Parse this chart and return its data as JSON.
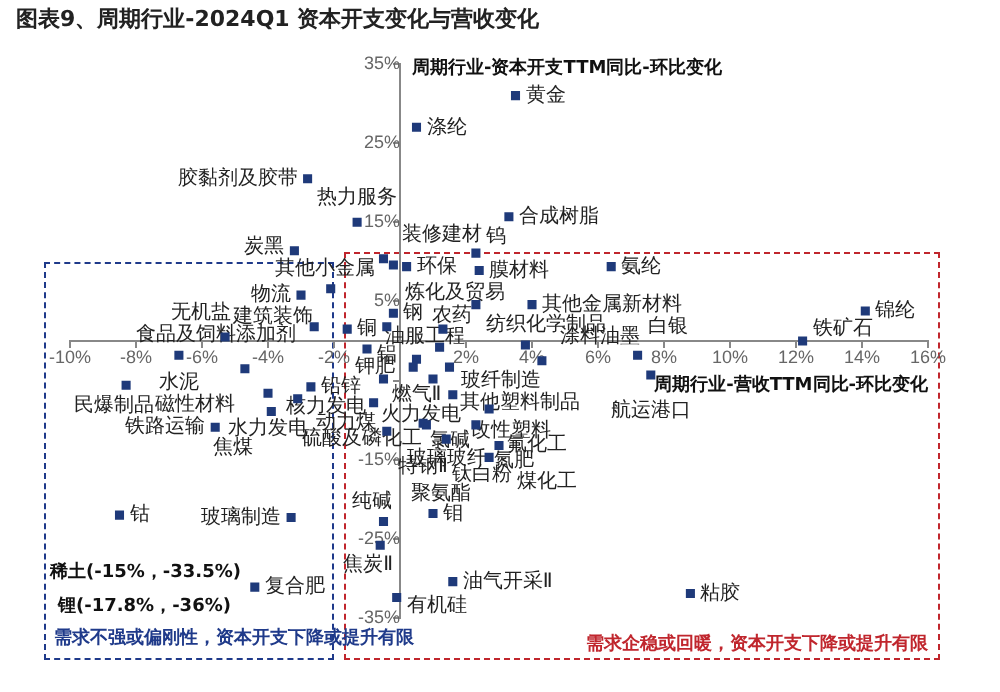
{
  "chart_data": {
    "type": "scatter",
    "title": "图表9、周期行业-2024Q1 资本开支变化与营收变化",
    "xlabel": "周期行业-营收TTM同比-环比变化",
    "ylabel": "周期行业-资本开支TTM同比-环比变化",
    "xlim": [
      -10,
      16
    ],
    "xticks": [
      {
        "value": -10,
        "label": "-10%"
      },
      {
        "value": -8,
        "label": "-8%"
      },
      {
        "value": -6,
        "label": "-6%"
      },
      {
        "value": -4,
        "label": "-4%"
      },
      {
        "value": -2,
        "label": "-2%"
      },
      {
        "value": 0,
        "label": null
      },
      {
        "value": 2,
        "label": "2%"
      },
      {
        "value": 4,
        "label": "4%"
      },
      {
        "value": 6,
        "label": "6%"
      },
      {
        "value": 8,
        "label": "8%"
      },
      {
        "value": 10,
        "label": "10%"
      },
      {
        "value": 12,
        "label": "12%"
      },
      {
        "value": 14,
        "label": "14%"
      },
      {
        "value": 16,
        "label": "16%"
      }
    ],
    "ylim": [
      -35,
      35
    ],
    "yticks": [
      {
        "value": -35,
        "label": "-35%"
      },
      {
        "value": -25,
        "label": "-25%"
      },
      {
        "value": -15,
        "label": "-15%"
      },
      {
        "value": -5,
        "label": null
      },
      {
        "value": 5,
        "label": "5%"
      },
      {
        "value": 15,
        "label": "15%"
      },
      {
        "value": 25,
        "label": "25%"
      },
      {
        "value": 35,
        "label": "35%"
      }
    ],
    "marker": "square",
    "legend": false,
    "grid": false,
    "series": [
      {
        "color": "#1f3a7a",
        "x": [
          0.5,
          3.5,
          -2.8,
          -1.3,
          3.3,
          -3.2,
          -0.5,
          -0.2,
          0.2,
          2.3,
          2.4,
          6.4,
          -3,
          -2.1,
          -2.6,
          -5.3,
          -1.6,
          -0.2,
          -0.4,
          2.3,
          1.3,
          4,
          3.8,
          4.3,
          7.2,
          7.6,
          12.2,
          14.1,
          -6.7,
          -4.7,
          -8.3,
          -4,
          -2.7,
          -3.1,
          -3.9,
          -5.6,
          -1,
          0.5,
          1.2,
          0.4,
          1.5,
          -0.5,
          1,
          1.6,
          -0.8,
          0.7,
          2.7,
          0.8,
          2.3,
          -0.4,
          1.4,
          3,
          2.7,
          -8.5,
          -3.3,
          -0.5,
          1,
          -0.6,
          -4.4,
          1.6,
          -0.1,
          8.8
        ],
        "values": [
          27,
          31,
          20.5,
          15,
          15.7,
          11.4,
          10.4,
          9.6,
          9.4,
          11.1,
          8.9,
          9.4,
          5.8,
          6.6,
          1.8,
          0.5,
          1.5,
          3.5,
          1.8,
          4.6,
          1.5,
          4.6,
          -0.5,
          -2.5,
          -1.8,
          -4.3,
          0,
          3.8,
          -1.8,
          -3.5,
          -5.6,
          -6.6,
          -5.8,
          -7.3,
          -8.9,
          -10.9,
          -1,
          -2.3,
          -0.8,
          -3.3,
          -3.3,
          -4.8,
          -4.8,
          -6.8,
          -7.8,
          -10.4,
          -8.6,
          -10.6,
          -10.6,
          -11.4,
          -12.4,
          -13.2,
          -14.7,
          -22,
          -22.3,
          -22.8,
          -21.8,
          -25.8,
          -31.1,
          -30.4,
          -32.4,
          -31.9
        ]
      }
    ],
    "annotations": [
      {
        "text": "涤纶",
        "x": 0.5,
        "y": 27
      },
      {
        "text": "黄金",
        "x": 3.5,
        "y": 31
      },
      {
        "text": "胶黏剂及胶带",
        "x": -2.8,
        "y": 20.5
      },
      {
        "text": "热力服务",
        "x": -1.3,
        "y": 15
      },
      {
        "text": "合成树脂",
        "x": 3.3,
        "y": 15.7
      },
      {
        "text": "炭黑",
        "x": -3.2,
        "y": 11.4
      },
      {
        "text": "装修建材",
        "x": -0.5,
        "y": 10.4
      },
      {
        "text": "其他小金属",
        "x": -0.2,
        "y": 9.6
      },
      {
        "text": "环保",
        "x": 0.2,
        "y": 9.4
      },
      {
        "text": "钨",
        "x": 2.3,
        "y": 11.1
      },
      {
        "text": "膜材料",
        "x": 2.4,
        "y": 8.9
      },
      {
        "text": "氨纶",
        "x": 6.4,
        "y": 9.4
      },
      {
        "text": "物流",
        "x": -3,
        "y": 5.8
      },
      {
        "text": "建筑装饰",
        "x": -2.1,
        "y": 6.6
      },
      {
        "text": "食品及饲料添加剂",
        "x": -2.6,
        "y": 1.8
      },
      {
        "text": "无机盐",
        "x": -5.3,
        "y": 0.5
      },
      {
        "text": "铜",
        "x": -1.6,
        "y": 1.5
      },
      {
        "text": "钢",
        "x": -0.2,
        "y": 3.5
      },
      {
        "text": "铝",
        "x": -0.4,
        "y": 1.8
      },
      {
        "text": "纺织化学制品",
        "x": 2.3,
        "y": 4.6
      },
      {
        "text": "炼化及贸易",
        "x": 1.3,
        "y": 1.5
      },
      {
        "text": "其他金属新材料",
        "x": 4,
        "y": 4.6
      },
      {
        "text": "玻纤制造",
        "x": 3.8,
        "y": -0.5
      },
      {
        "text": "涂料油墨",
        "x": 4.3,
        "y": -2.5
      },
      {
        "text": "白银",
        "x": 7.2,
        "y": -1.8
      },
      {
        "text": "航运港口",
        "x": 7.6,
        "y": -4.3
      },
      {
        "text": "铁矿石",
        "x": 12.2,
        "y": 0
      },
      {
        "text": "锦纶",
        "x": 14.1,
        "y": 3.8
      },
      {
        "text": "水泥",
        "x": -6.7,
        "y": -1.8
      },
      {
        "text": "磁性材料",
        "x": -4.7,
        "y": -3.5
      },
      {
        "text": "民爆制品",
        "x": -8.3,
        "y": -5.6
      },
      {
        "text": "水力发电",
        "x": -4,
        "y": -6.6
      },
      {
        "text": "铅锌",
        "x": -2.7,
        "y": -5.8
      },
      {
        "text": "动力煤",
        "x": -3.1,
        "y": -7.3
      },
      {
        "text": "焦煤",
        "x": -3.9,
        "y": -8.9
      },
      {
        "text": "铁路运输",
        "x": -5.6,
        "y": -10.9
      },
      {
        "text": "油服工程",
        "x": -1,
        "y": -1
      },
      {
        "text": "燃气Ⅱ",
        "x": 0.5,
        "y": -2.3
      },
      {
        "text": "农药",
        "x": 1.2,
        "y": -0.8
      },
      {
        "text": "钾肥",
        "x": 0.4,
        "y": -3.3
      },
      {
        "text": "其他塑料制品",
        "x": 1.5,
        "y": -3.3
      },
      {
        "text": "核力发电",
        "x": -0.5,
        "y": -4.8
      },
      {
        "text": "火力发电",
        "x": 1,
        "y": -4.8
      },
      {
        "text": "改性塑料",
        "x": 1.6,
        "y": -6.8
      },
      {
        "text": "硫酸及磷化工",
        "x": -0.8,
        "y": -7.8
      },
      {
        "text": "玻璃玻纤",
        "x": 0.7,
        "y": -10.4
      },
      {
        "text": "氟化工",
        "x": 2.7,
        "y": -8.6
      },
      {
        "text": "氯碱",
        "x": 0.8,
        "y": -10.6
      },
      {
        "text": "氮肥",
        "x": 2.3,
        "y": -10.6
      },
      {
        "text": "特钢Ⅱ",
        "x": -0.4,
        "y": -11.4
      },
      {
        "text": "钛白粉",
        "x": 1.4,
        "y": -12.4
      },
      {
        "text": "煤化工",
        "x": 3,
        "y": -13.2
      },
      {
        "text": "聚氨酯",
        "x": 2.7,
        "y": -14.7
      },
      {
        "text": "钴",
        "x": -8.5,
        "y": -22
      },
      {
        "text": "玻璃制造",
        "x": -3.3,
        "y": -22.3
      },
      {
        "text": "纯碱",
        "x": -0.5,
        "y": -22.8
      },
      {
        "text": "钼",
        "x": 1,
        "y": -21.8
      },
      {
        "text": "焦炭Ⅱ",
        "x": -0.6,
        "y": -25.8
      },
      {
        "text": "复合肥",
        "x": -4.4,
        "y": -31.1
      },
      {
        "text": "油气开采Ⅱ",
        "x": 1.6,
        "y": -30.4
      },
      {
        "text": "有机硅",
        "x": -0.1,
        "y": -32.4
      },
      {
        "text": "粘胶",
        "x": 8.8,
        "y": -31.9
      },
      "稀土(-15%，-33.5%)",
      "锂(-17.8%，-36%)",
      "需求不强或偏刚性，资本开支下降或提升有限",
      "需求企稳或回暖，资本开支下降或提升有限"
    ]
  }
}
